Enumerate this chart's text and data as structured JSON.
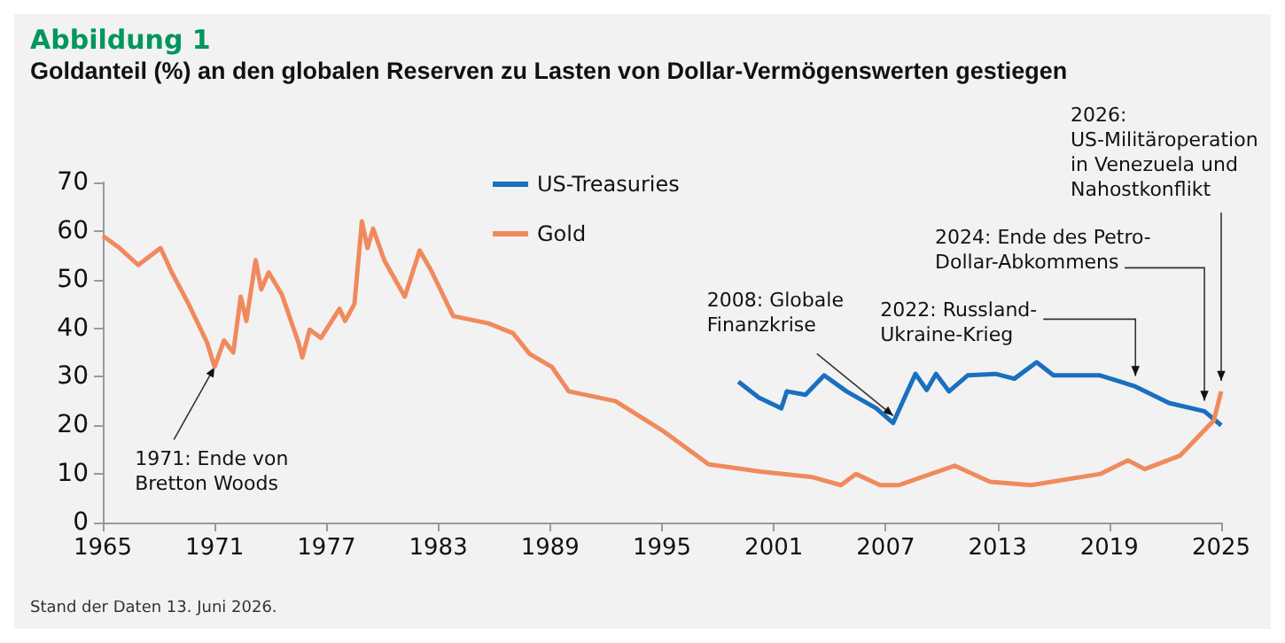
{
  "chart_data": {
    "type": "line",
    "title": "Abbildung 1",
    "subtitle": "Goldanteil (%) an den globalen Reserven zu Lasten von Dollar-Vermögenswerten gestiegen",
    "xlim": [
      1965,
      2025
    ],
    "xticks": [
      1965,
      1971,
      1977,
      1983,
      1989,
      1995,
      2001,
      2007,
      2013,
      2019,
      2025
    ],
    "ylim": [
      0,
      70
    ],
    "yticks": [
      0,
      10,
      20,
      30,
      40,
      50,
      60,
      70
    ],
    "grid": false,
    "legend": "top",
    "marker": "none",
    "line_style": "solid",
    "series": [
      {
        "name": "US-Treasuries",
        "color": "#1a6fbf",
        "x": [
          1999.1,
          2000.2,
          2001.4,
          2001.7,
          2002.7,
          2003.7,
          2004.9,
          2006.5,
          2007.4,
          2008.0,
          2008.6,
          2009.2,
          2009.7,
          2010.4,
          2011.4,
          2012.9,
          2013.9,
          2015.1,
          2016.0,
          2018.5,
          2020.4,
          2022.2,
          2024.1,
          2025
        ],
        "values": [
          29,
          25.7,
          23.5,
          27,
          26.3,
          30.3,
          27,
          23.5,
          20.5,
          25.6,
          30.6,
          27.3,
          30.6,
          27,
          30.3,
          30.6,
          29.6,
          33,
          30.3,
          30.3,
          28,
          24.6,
          22.9,
          20
        ]
      },
      {
        "name": "Gold",
        "color": "#f08a5d",
        "x": [
          1965,
          1965.9,
          1966.9,
          1968.1,
          1968.7,
          1969.6,
          1970.6,
          1971.0,
          1971.5,
          1972.0,
          1972.4,
          1972.7,
          1973.2,
          1973.5,
          1973.9,
          1974.6,
          1975.5,
          1975.7,
          1976.1,
          1976.7,
          1977.7,
          1978.0,
          1978.5,
          1978.9,
          1979.2,
          1979.5,
          1980.1,
          1981.2,
          1982.0,
          1982.6,
          1983.8,
          1985.7,
          1987.0,
          1987.9,
          1989.1,
          1990.0,
          1992.5,
          1995.0,
          1997.5,
          2000.3,
          2003.0,
          2004.6,
          2005.4,
          2006.7,
          2007.7,
          2010.7,
          2012.6,
          2014.8,
          2018.5,
          2020.0,
          2020.9,
          2022.8,
          2024.1,
          2024.6,
          2025
        ],
        "values": [
          59,
          56.5,
          53,
          56.5,
          51.5,
          45,
          37,
          32,
          37.5,
          35,
          46.5,
          41.5,
          54,
          48,
          51.5,
          47,
          37,
          34,
          39.7,
          38,
          44,
          41.5,
          45,
          62,
          56.5,
          60.5,
          54,
          46.5,
          56,
          52,
          42.5,
          41,
          39,
          34.7,
          32,
          27,
          25,
          19,
          12,
          10.5,
          9.4,
          7.7,
          10,
          7.7,
          7.7,
          11.7,
          8.4,
          7.7,
          10,
          12.8,
          11,
          13.8,
          19,
          21,
          27
        ]
      }
    ],
    "annotations": [
      {
        "text": "1971: Ende von\nBretton Woods",
        "x": 1971,
        "y": 32
      },
      {
        "text": "2008: Globale\nFinanzkrise",
        "x": 2007.4,
        "y": 22
      },
      {
        "text": "2022: Russland-\nUkraine-Krieg",
        "x": 2020.4,
        "y": 28
      },
      {
        "text": "2024: Ende des Petro-\nDollar-Abkommens",
        "x": 2024.1,
        "y": 22.9
      },
      {
        "text": "2026:\nUS-Militäroperation\nin Venezuela und\nNahostkonflikt",
        "x": 2025,
        "y": 27
      },
      "Stand der Daten 13. Juni 2026."
    ]
  }
}
